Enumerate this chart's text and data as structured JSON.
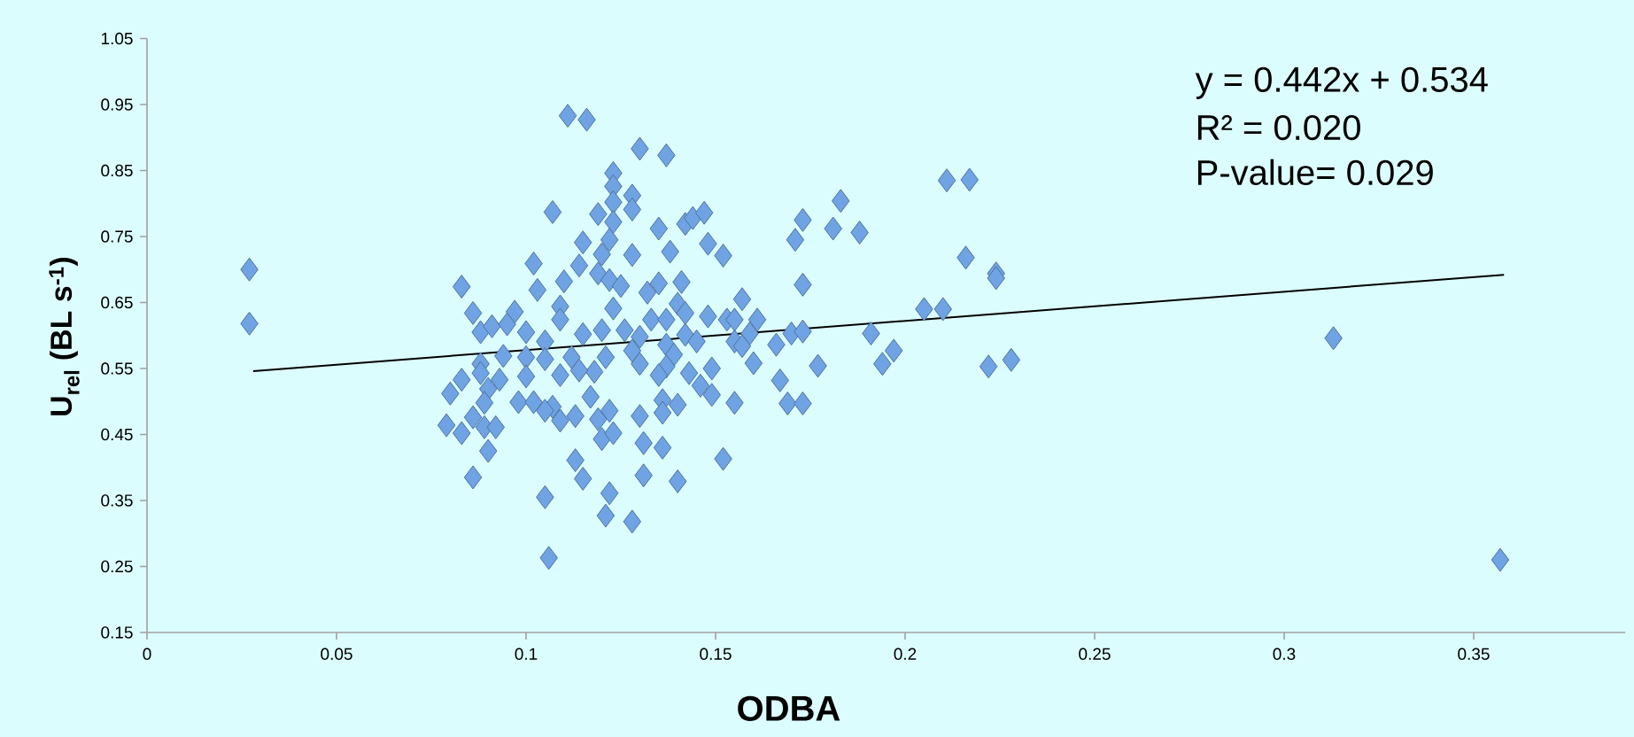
{
  "chart_data": {
    "type": "scatter",
    "xlabel": "ODBA",
    "ylabel": "U$_{rel}$ (BL s$^{-1}$)",
    "xlim": [
      0,
      0.39
    ],
    "ylim": [
      0.15,
      1.05
    ],
    "xticks": [
      {
        "value": 0,
        "label": "0"
      },
      0.05,
      0.1,
      0.15,
      0.2,
      0.25,
      0.3,
      0.35
    ],
    "yticks": [
      0.15,
      0.25,
      0.35,
      0.45,
      0.55,
      0.65,
      0.75,
      0.85,
      0.95,
      1.05
    ],
    "grid": false,
    "annotations": [
      "y = 0.442x + 0.534",
      "R² = 0.020",
      "P-value= 0.029"
    ],
    "series": [
      {
        "type": "scatter",
        "marker": "diamond",
        "color": "#6fa3e3",
        "x": [
          0.027,
          0.027,
          0.111,
          0.116,
          0.13,
          0.137,
          0.123,
          0.123,
          0.128,
          0.123,
          0.128,
          0.119,
          0.107,
          0.123,
          0.135,
          0.142,
          0.144,
          0.147,
          0.115,
          0.122,
          0.148,
          0.152,
          0.138,
          0.128,
          0.12,
          0.114,
          0.102,
          0.119,
          0.11,
          0.122,
          0.125,
          0.083,
          0.103,
          0.123,
          0.132,
          0.135,
          0.141,
          0.14,
          0.142,
          0.157,
          0.086,
          0.097,
          0.109,
          0.109,
          0.088,
          0.091,
          0.1,
          0.095,
          0.133,
          0.137,
          0.148,
          0.153,
          0.12,
          0.126,
          0.115,
          0.13,
          0.142,
          0.145,
          0.155,
          0.137,
          0.105,
          0.094,
          0.1,
          0.088,
          0.105,
          0.112,
          0.121,
          0.128,
          0.13,
          0.139,
          0.137,
          0.088,
          0.1,
          0.109,
          0.118,
          0.114,
          0.143,
          0.149,
          0.135,
          0.083,
          0.093,
          0.08,
          0.09,
          0.098,
          0.089,
          0.102,
          0.107,
          0.113,
          0.117,
          0.122,
          0.119,
          0.136,
          0.14,
          0.146,
          0.149,
          0.155,
          0.13,
          0.136,
          0.079,
          0.083,
          0.086,
          0.089,
          0.092,
          0.105,
          0.109,
          0.12,
          0.123,
          0.131,
          0.136,
          0.152,
          0.09,
          0.113,
          0.086,
          0.115,
          0.131,
          0.14,
          0.122,
          0.105,
          0.121,
          0.128,
          0.106,
          0.211,
          0.217,
          0.183,
          0.173,
          0.181,
          0.188,
          0.171,
          0.216,
          0.224,
          0.224,
          0.173,
          0.205,
          0.21,
          0.155,
          0.161,
          0.159,
          0.17,
          0.173,
          0.191,
          0.166,
          0.157,
          0.197,
          0.194,
          0.16,
          0.177,
          0.222,
          0.228,
          0.167,
          0.169,
          0.173,
          0.313,
          0.357
        ],
        "values": [
          0.7,
          0.618,
          0.933,
          0.927,
          0.883,
          0.873,
          0.846,
          0.826,
          0.812,
          0.802,
          0.791,
          0.784,
          0.787,
          0.772,
          0.762,
          0.769,
          0.778,
          0.786,
          0.741,
          0.745,
          0.739,
          0.721,
          0.727,
          0.722,
          0.723,
          0.706,
          0.709,
          0.694,
          0.682,
          0.684,
          0.675,
          0.674,
          0.669,
          0.641,
          0.665,
          0.679,
          0.681,
          0.648,
          0.634,
          0.655,
          0.634,
          0.636,
          0.644,
          0.624,
          0.605,
          0.614,
          0.605,
          0.617,
          0.624,
          0.624,
          0.629,
          0.624,
          0.608,
          0.608,
          0.602,
          0.598,
          0.601,
          0.591,
          0.591,
          0.586,
          0.591,
          0.569,
          0.567,
          0.557,
          0.564,
          0.567,
          0.567,
          0.577,
          0.557,
          0.571,
          0.553,
          0.543,
          0.538,
          0.54,
          0.545,
          0.547,
          0.543,
          0.55,
          0.54,
          0.533,
          0.533,
          0.512,
          0.519,
          0.499,
          0.498,
          0.499,
          0.492,
          0.478,
          0.507,
          0.486,
          0.473,
          0.502,
          0.495,
          0.524,
          0.51,
          0.498,
          0.478,
          0.483,
          0.464,
          0.452,
          0.476,
          0.461,
          0.461,
          0.486,
          0.471,
          0.443,
          0.452,
          0.437,
          0.43,
          0.413,
          0.425,
          0.411,
          0.385,
          0.383,
          0.388,
          0.379,
          0.361,
          0.355,
          0.327,
          0.318,
          0.263,
          0.835,
          0.836,
          0.804,
          0.775,
          0.762,
          0.756,
          0.745,
          0.718,
          0.694,
          0.687,
          0.677,
          0.64,
          0.64,
          0.624,
          0.624,
          0.603,
          0.603,
          0.606,
          0.603,
          0.586,
          0.584,
          0.577,
          0.557,
          0.558,
          0.554,
          0.553,
          0.563,
          0.532,
          0.497,
          0.497,
          0.596,
          0.26
        ]
      },
      {
        "type": "line",
        "marker": "none",
        "line_style": "solid",
        "color": "#000000",
        "x": [
          0.028,
          0.358
        ],
        "values": [
          0.546,
          0.692
        ]
      }
    ]
  }
}
